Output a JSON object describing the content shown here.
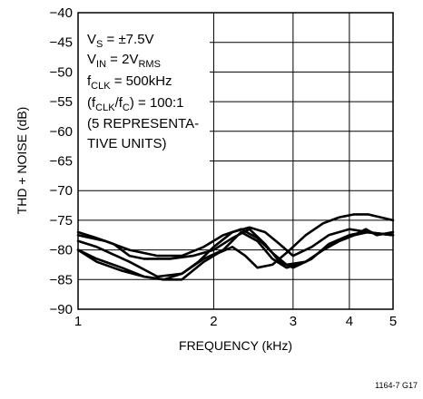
{
  "chart_data": {
    "type": "line",
    "xlabel": "FREQUENCY (kHz)",
    "ylabel": "THD + NOISE (dB)",
    "xscale": "log",
    "xlim": [
      1,
      5
    ],
    "ylim": [
      -90,
      -40
    ],
    "xticks": [
      1,
      2,
      3,
      4,
      5
    ],
    "yticks": [
      -40,
      -45,
      -50,
      -55,
      -60,
      -65,
      -70,
      -75,
      -80,
      -85,
      -90
    ],
    "grid": true,
    "annotation": {
      "line1": {
        "main": "V",
        "sub": "S",
        "rest": " = ±7.5V"
      },
      "line2": {
        "main": "V",
        "sub": "IN",
        "rest": " = 2V",
        "sub2": "RMS"
      },
      "line3": {
        "main": "f",
        "sub": "CLK",
        "rest": " = 500kHz"
      },
      "line4": {
        "open": "(f",
        "sub": "CLK",
        "mid": "/f",
        "sub2": "C",
        "rest": ") = 100:1"
      },
      "line5": "(5 REPRESENTA-",
      "line6": "TIVE UNITS)"
    },
    "figure_id": "1164-7 G17",
    "series": [
      {
        "x": [
          1,
          1.1,
          1.25,
          1.4,
          1.55,
          1.7,
          1.85,
          2.0,
          2.2,
          2.4,
          2.6,
          2.8,
          3.0,
          3.3,
          3.6,
          4.0,
          4.4,
          5.0
        ],
        "y": [
          -80,
          -82,
          -83.5,
          -84.5,
          -85,
          -84,
          -82,
          -79.5,
          -77,
          -76.2,
          -77,
          -79,
          -81,
          -79.5,
          -77.5,
          -76.5,
          -77,
          -77.5
        ]
      },
      {
        "x": [
          1,
          1.1,
          1.2,
          1.3,
          1.4,
          1.6,
          1.8,
          2.0,
          2.2,
          2.4,
          2.6,
          2.8,
          3.0,
          3.3,
          3.6,
          4.0,
          4.3,
          4.6,
          5.0
        ],
        "y": [
          -77,
          -78,
          -79,
          -81,
          -81.5,
          -81.5,
          -81,
          -80,
          -78,
          -76.5,
          -79,
          -82,
          -83,
          -81.5,
          -79,
          -77.5,
          -77,
          -77.2,
          -77.5
        ]
      },
      {
        "x": [
          1,
          1.15,
          1.3,
          1.5,
          1.7,
          1.9,
          2.1,
          2.3,
          2.5,
          2.7,
          2.9,
          3.2,
          3.5,
          3.8,
          4.1,
          4.4,
          4.6,
          5.0
        ],
        "y": [
          -77.5,
          -78.5,
          -80,
          -81,
          -81,
          -79.5,
          -77.5,
          -76.5,
          -78,
          -80.5,
          -82.5,
          -82,
          -80,
          -78.5,
          -77.5,
          -77,
          -77.2,
          -77.5
        ]
      },
      {
        "x": [
          1,
          1.1,
          1.25,
          1.4,
          1.55,
          1.7,
          1.9,
          2.05,
          2.2,
          2.35,
          2.5,
          2.7,
          2.9,
          3.2,
          3.5,
          3.8,
          4.1,
          4.4,
          5.0
        ],
        "y": [
          -80,
          -81.5,
          -83,
          -84.5,
          -85,
          -85,
          -82,
          -80.5,
          -79.5,
          -81,
          -83,
          -82.5,
          -80.5,
          -77.5,
          -75.5,
          -74.5,
          -74,
          -74,
          -75
        ]
      },
      {
        "x": [
          1,
          1.1,
          1.3,
          1.5,
          1.7,
          1.9,
          2.1,
          2.3,
          2.5,
          2.7,
          2.9,
          3.2,
          3.5,
          3.8,
          4.1,
          4.35,
          4.6,
          5.0
        ],
        "y": [
          -78.5,
          -79.5,
          -82,
          -84.5,
          -84,
          -81.5,
          -80,
          -77,
          -78.5,
          -81.5,
          -83,
          -82,
          -80,
          -78.5,
          -77.5,
          -76.5,
          -77.5,
          -77
        ]
      }
    ]
  }
}
